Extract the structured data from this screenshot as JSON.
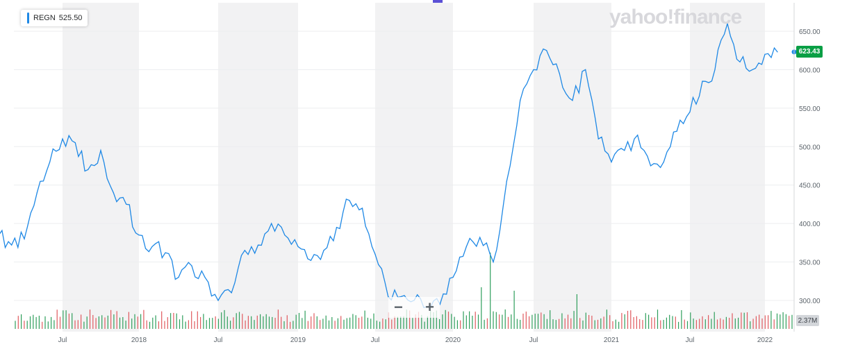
{
  "legend": {
    "symbol": "REGN",
    "value": "525.50"
  },
  "watermark": "yahoo!finance",
  "last_price_label": "623.43",
  "volume_label": "2.37M",
  "zoom": {
    "minus_label": "−",
    "plus_label": "+"
  },
  "colors": {
    "line": "#1e88e5",
    "up_volume": "#2e9e5b",
    "down_volume": "#e0595e",
    "last_price_badge": "#0a9f45"
  },
  "chart_data": {
    "type": "line",
    "title": "",
    "xlabel": "",
    "ylabel": "",
    "ylim": [
      275,
      690
    ],
    "x_tick_labels": [
      "Jul",
      "2018",
      "Jul",
      "2019",
      "Jul",
      "2020",
      "Jul",
      "2021",
      "Jul",
      "2022"
    ],
    "y_tick_labels": [
      "300.00",
      "350.00",
      "400.00",
      "450.00",
      "500.00",
      "550.00",
      "600.00",
      "650.00"
    ],
    "y_ticks": [
      300,
      350,
      400,
      450,
      500,
      550,
      600,
      650
    ],
    "grid": true,
    "legend_position": "top-left",
    "series": [
      {
        "name": "REGN",
        "x": [
          "2017-02",
          "2017-03",
          "2017-04",
          "2017-05",
          "2017-06",
          "2017-07",
          "2017-08",
          "2017-09",
          "2017-10",
          "2017-11",
          "2017-12",
          "2018-01",
          "2018-02",
          "2018-03",
          "2018-04",
          "2018-05",
          "2018-06",
          "2018-07",
          "2018-08",
          "2018-09",
          "2018-10",
          "2018-11",
          "2018-12",
          "2019-01",
          "2019-02",
          "2019-03",
          "2019-04",
          "2019-05",
          "2019-06",
          "2019-07",
          "2019-08",
          "2019-09",
          "2019-10",
          "2019-11",
          "2019-12",
          "2020-01",
          "2020-02",
          "2020-03",
          "2020-04",
          "2020-05",
          "2020-06",
          "2020-07",
          "2020-08",
          "2020-09",
          "2020-10",
          "2020-11",
          "2020-12",
          "2021-01",
          "2021-02",
          "2021-03",
          "2021-04",
          "2021-05",
          "2021-06",
          "2021-07",
          "2021-08",
          "2021-09",
          "2021-10",
          "2021-11",
          "2021-12",
          "2022-01",
          "2022-02"
        ],
        "values": [
          385,
          372,
          380,
          440,
          480,
          510,
          505,
          470,
          495,
          440,
          425,
          385,
          370,
          362,
          330,
          345,
          330,
          300,
          310,
          365,
          372,
          400,
          385,
          370,
          352,
          365,
          395,
          430,
          420,
          360,
          305,
          305,
          300,
          292,
          295,
          330,
          370,
          382,
          350,
          455,
          560,
          600,
          625,
          595,
          560,
          600,
          510,
          480,
          495,
          515,
          475,
          480,
          520,
          545,
          585,
          600,
          660,
          610,
          600,
          620,
          623
        ]
      }
    ],
    "volume_label": "2.37M"
  }
}
